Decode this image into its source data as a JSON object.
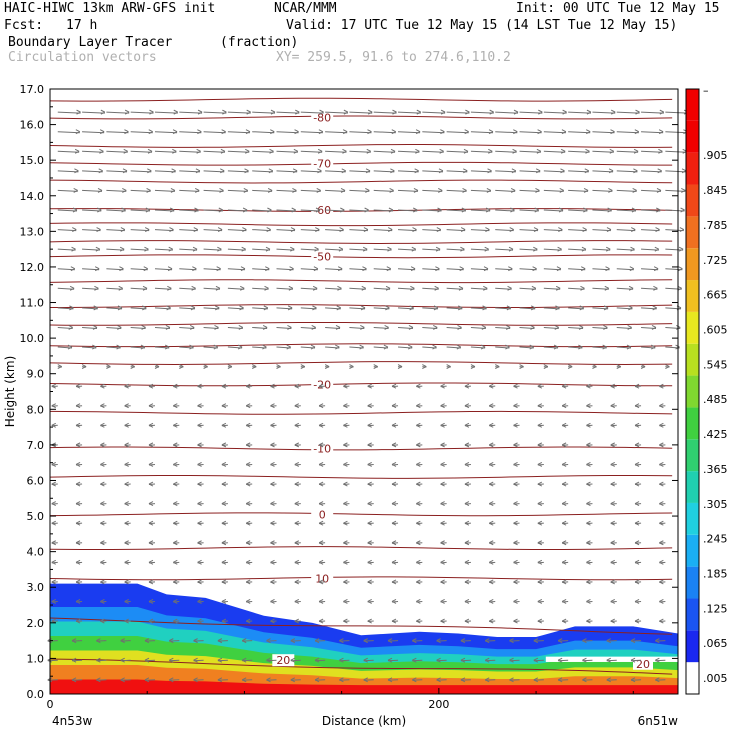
{
  "header": {
    "model": "HAIC-HIWC 13km ARW-GFS init",
    "org": "NCAR/MMM",
    "init": "Init: 00 UTC Tue 12 May 15",
    "fcst_label": "Fcst:",
    "fcst_value": "17 h",
    "valid": "Valid: 17 UTC Tue 12 May 15 (14 LST Tue 12 May 15)",
    "field_name": "Boundary Layer Tracer",
    "field_units": "(fraction)",
    "overlay_name": "Circulation vectors",
    "xy_range": "XY= 259.5, 91.6 to 274.6,110.2"
  },
  "chart_data": {
    "type": "heatmap",
    "title": "Boundary Layer Tracer",
    "xlabel": "Distance (km)",
    "ylabel": "Height (km)",
    "xlim": [
      0,
      323
    ],
    "ylim": [
      0,
      17
    ],
    "x_ticks": [
      0,
      200
    ],
    "x_tick_labels": [
      "0",
      "200"
    ],
    "x_end_labels": {
      "left": "4n53w",
      "right": "6n51w"
    },
    "y_ticks": [
      0,
      1,
      2,
      3,
      4,
      5,
      6,
      7,
      8,
      9,
      10,
      11,
      12,
      13,
      14,
      15,
      16,
      17
    ],
    "y_tick_labels": [
      "0.0",
      "1.0",
      "2.0",
      "3.0",
      "4.0",
      "5.0",
      "6.0",
      "7.0",
      "8.0",
      "9.0",
      "10.0",
      "11.0",
      "12.0",
      "13.0",
      "14.0",
      "15.0",
      "16.0",
      "17.0"
    ],
    "tracer_top_km": {
      "x": [
        0,
        45,
        60,
        80,
        110,
        135,
        160,
        190,
        210,
        230,
        250,
        270,
        300,
        323
      ],
      "top": [
        3.1,
        3.1,
        2.8,
        2.7,
        2.2,
        2.0,
        1.65,
        1.75,
        1.7,
        1.6,
        1.6,
        1.9,
        1.9,
        1.7
      ]
    },
    "tracer_bands": [
      {
        "level": 0.005,
        "color": "#1a3cf0"
      },
      {
        "level": 0.065,
        "color": "#1c8cf5"
      },
      {
        "level": 0.185,
        "color": "#20d0c0"
      },
      {
        "level": 0.305,
        "color": "#40d040"
      },
      {
        "level": 0.485,
        "color": "#e0e020"
      },
      {
        "level": 0.665,
        "color": "#f08020"
      },
      {
        "level": 0.845,
        "color": "#f01010"
      }
    ],
    "temperature_contours": {
      "color": "#8b2020",
      "labeled": [
        {
          "value": "-80",
          "height_km": 16.2
        },
        {
          "value": "-70",
          "height_km": 14.9
        },
        {
          "value": "-60",
          "height_km": 13.6
        },
        {
          "value": "-50",
          "height_km": 12.3
        },
        {
          "value": "-20",
          "height_km": 8.7
        },
        {
          "value": "-10",
          "height_km": 6.9
        },
        {
          "value": "0",
          "height_km": 5.05
        },
        {
          "value": "10",
          "height_km": 3.25
        },
        {
          "value": "20",
          "height_km": 0.95
        }
      ],
      "unlabeled_km": [
        16.7,
        15.4,
        14.4,
        13.2,
        12.7,
        11.6,
        10.9,
        10.4,
        9.8,
        9.3,
        7.9,
        6.1,
        4.1,
        2.1
      ]
    },
    "colorbar": {
      "labels": [
        ".005",
        ".065",
        ".125",
        ".185",
        ".245",
        ".305",
        ".365",
        ".425",
        ".485",
        ".545",
        ".605",
        ".665",
        ".725",
        ".785",
        ".845",
        ".905"
      ],
      "top_label": "–",
      "colors": [
        "#ffffff",
        "#1a28f0",
        "#1a55f2",
        "#1a82f4",
        "#1aaff4",
        "#20d0e0",
        "#20d0b0",
        "#30d070",
        "#40d040",
        "#80d830",
        "#b8e020",
        "#e8e820",
        "#f0c020",
        "#f09820",
        "#f07020",
        "#f04818",
        "#f02010",
        "#f00000",
        "#f00000"
      ]
    }
  }
}
